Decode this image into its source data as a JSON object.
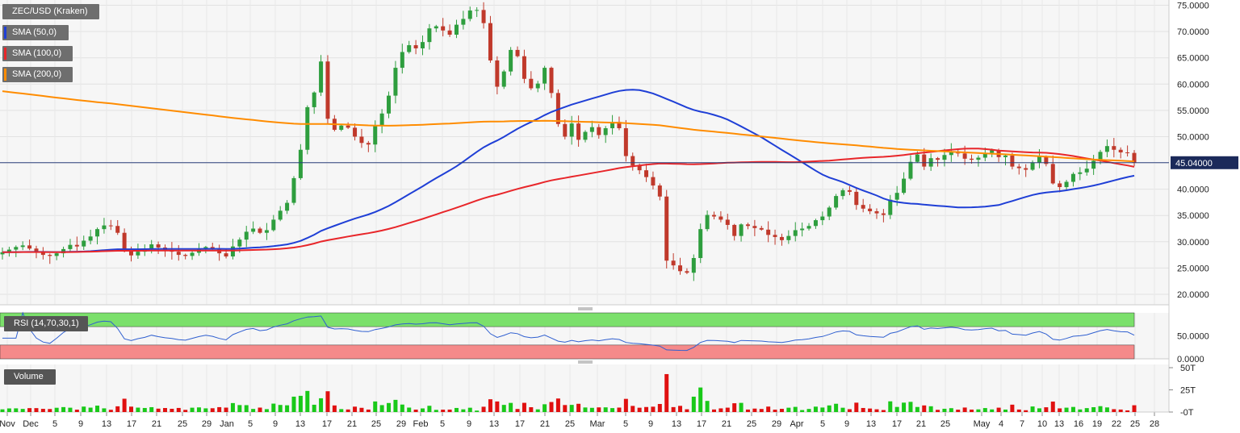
{
  "chart_data": [
    {
      "type": "candlestick",
      "title": "ZEC/USD (Kraken)",
      "legend": [
        {
          "name": "SMA (50,0)",
          "color": "#1f3fd6"
        },
        {
          "name": "SMA (100,0)",
          "color": "#e8262a"
        },
        {
          "name": "SMA (200,0)",
          "color": "#ff8c00"
        }
      ],
      "y_ticks": [
        "75.0000",
        "70.0000",
        "65.0000",
        "60.0000",
        "55.0000",
        "50.0000",
        "45.0000",
        "40.0000",
        "35.0000",
        "30.0000",
        "25.0000",
        "20.0000"
      ],
      "ylim": [
        18.0,
        76.0
      ],
      "last_price_label": "45.04000",
      "last_price": 45.04,
      "x_ticks": [
        "Nov",
        "Dec",
        "5",
        "9",
        "13",
        "17",
        "21",
        "25",
        "29",
        "Jan",
        "5",
        "9",
        "13",
        "17",
        "21",
        "25",
        "29",
        "Feb",
        "5",
        "9",
        "13",
        "17",
        "21",
        "25",
        "Mar",
        "5",
        "9",
        "13",
        "17",
        "21",
        "25",
        "29",
        "Apr",
        "5",
        "9",
        "13",
        "17",
        "21",
        "25",
        "May",
        "4",
        "7",
        "10",
        "13",
        "16",
        "19",
        "22",
        "25",
        "28"
      ],
      "up_color": "#2e9e3e",
      "down_color": "#c0392b",
      "close_series": [
        28.0,
        28.5,
        29.0,
        29.3,
        28.7,
        28.0,
        27.5,
        27.3,
        27.8,
        28.6,
        29.4,
        29.1,
        30.2,
        31.0,
        32.4,
        33.1,
        33.0,
        31.7,
        28.3,
        27.4,
        28.1,
        28.6,
        29.5,
        28.9,
        28.4,
        28.1,
        27.5,
        27.3,
        27.9,
        28.5,
        29.0,
        28.6,
        27.8,
        27.2,
        29.1,
        30.4,
        31.9,
        32.5,
        31.7,
        32.2,
        34.2,
        35.9,
        37.4,
        42.1,
        47.5,
        55.6,
        58.4,
        64.3,
        53.4,
        51.3,
        52.1,
        51.7,
        50.0,
        48.8,
        48.5,
        52.2,
        54.4,
        57.8,
        63.1,
        66.1,
        67.4,
        66.8,
        68.0,
        70.6,
        71.0,
        70.2,
        69.4,
        71.3,
        72.4,
        74.0,
        74.1,
        71.6,
        64.5,
        59.5,
        62.4,
        66.5,
        65.3,
        61.0,
        59.2,
        60.1,
        63.1,
        58.3,
        52.4,
        50.0,
        52.5,
        49.4,
        50.9,
        51.8,
        50.3,
        51.6,
        52.8,
        51.6,
        46.3,
        44.5,
        43.6,
        42.3,
        40.7,
        38.6,
        26.4,
        25.5,
        24.4,
        24.1,
        26.9,
        32.4,
        35.1,
        34.8,
        34.2,
        33.2,
        31.1,
        33.3,
        33.0,
        32.6,
        32.3,
        31.3,
        30.9,
        30.3,
        31.1,
        32.2,
        32.5,
        33.0,
        34.1,
        34.8,
        36.5,
        38.7,
        39.8,
        39.5,
        37.0,
        36.3,
        35.8,
        35.4,
        35.1,
        38.0,
        39.3,
        42.0,
        45.2,
        46.6,
        44.3,
        45.9,
        45.6,
        46.5,
        47.2,
        46.8,
        45.8,
        45.6,
        46.0,
        46.9,
        47.4,
        46.1,
        46.4,
        44.3,
        44.0,
        43.7,
        45.1,
        46.2,
        44.8,
        41.1,
        40.4,
        41.4,
        42.9,
        43.2,
        43.9,
        45.4,
        47.1,
        48.2,
        47.5,
        47.0,
        46.9,
        45.0
      ]
    },
    {
      "type": "line",
      "title": "RSI (14,70,30,1)",
      "y_ticks": [
        "50.0000",
        "0.0000"
      ],
      "ylim": [
        0,
        100
      ],
      "overbought": 70,
      "oversold": 30
    },
    {
      "type": "bar",
      "title": "Volume",
      "y_ticks": [
        "50T",
        "25T",
        "-0T"
      ],
      "ylim": [
        0,
        50
      ]
    }
  ]
}
